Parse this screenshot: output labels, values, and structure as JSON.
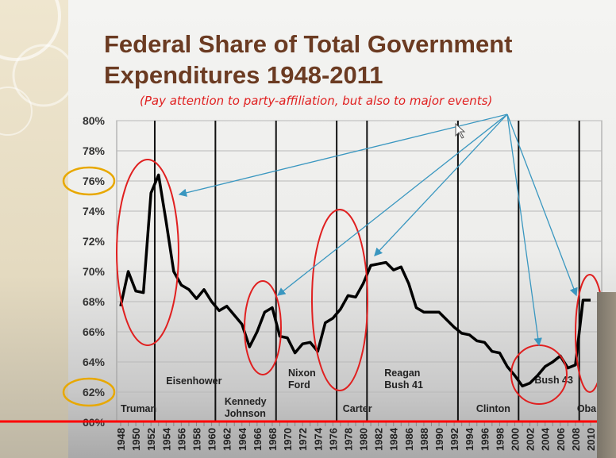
{
  "slide": {
    "title_line1": "Federal Share of Total Government",
    "title_line2": "Expenditures 1948-2011",
    "subtitle": "(Pay attention to party-affiliation, but also to major events)"
  },
  "colors": {
    "line": "#000000",
    "title": "#6b3b22",
    "annotation_ellipse": "#e02020",
    "arrow": "#3a97c0",
    "highlight": "#e8a800",
    "red_rule": "#ff0000"
  },
  "chart_data": {
    "type": "line",
    "title": "Federal Share of Total Government Expenditures 1948-2011",
    "ylim": [
      60,
      80
    ],
    "yticks": [
      "60%",
      "62%",
      "64%",
      "66%",
      "68%",
      "70%",
      "72%",
      "74%",
      "76%",
      "78%",
      "80%"
    ],
    "highlighted_yticks": [
      "76%",
      "62%"
    ],
    "xticks": [
      "1948",
      "1950",
      "1952",
      "1954",
      "1956",
      "1958",
      "1960",
      "1962",
      "1964",
      "1966",
      "1968",
      "1970",
      "1972",
      "1974",
      "1976",
      "1978",
      "1980",
      "1982",
      "1984",
      "1986",
      "1988",
      "1990",
      "1992",
      "1994",
      "1996",
      "1998",
      "2000",
      "2002",
      "2004",
      "2006",
      "2008",
      "2010"
    ],
    "grid": true,
    "x": [
      1948,
      1949,
      1950,
      1951,
      1952,
      1953,
      1954,
      1955,
      1956,
      1957,
      1958,
      1959,
      1960,
      1961,
      1962,
      1963,
      1964,
      1965,
      1966,
      1967,
      1968,
      1969,
      1970,
      1971,
      1972,
      1973,
      1974,
      1975,
      1976,
      1977,
      1978,
      1979,
      1980,
      1981,
      1982,
      1983,
      1984,
      1985,
      1986,
      1987,
      1988,
      1989,
      1990,
      1991,
      1992,
      1993,
      1994,
      1995,
      1996,
      1997,
      1998,
      1999,
      2000,
      2001,
      2002,
      2003,
      2004,
      2005,
      2006,
      2007,
      2008,
      2009,
      2010
    ],
    "values": [
      67.7,
      70.0,
      68.7,
      68.6,
      75.2,
      76.4,
      73.3,
      70.0,
      69.1,
      68.8,
      68.2,
      68.8,
      68.0,
      67.4,
      67.7,
      67.1,
      66.5,
      65.0,
      66.0,
      67.3,
      67.6,
      65.7,
      65.6,
      64.6,
      65.2,
      65.3,
      64.7,
      66.6,
      66.9,
      67.5,
      68.4,
      68.3,
      69.2,
      70.4,
      70.5,
      70.6,
      70.1,
      70.3,
      69.2,
      67.6,
      67.3,
      67.3,
      67.3,
      66.8,
      66.3,
      65.9,
      65.8,
      65.4,
      65.3,
      64.7,
      64.6,
      63.7,
      63.1,
      62.4,
      62.6,
      63.1,
      63.7,
      64.0,
      64.4,
      63.6,
      63.8,
      68.1,
      68.1
    ],
    "administration_boundaries": [
      1952.5,
      1960.5,
      1968.5,
      1976.5,
      1980.5,
      1992.5,
      2000.5,
      2008.5
    ],
    "administration_labels": [
      {
        "text": [
          "Truman"
        ],
        "year": 1948
      },
      {
        "text": [
          "Eisenhower"
        ],
        "year": 1954
      },
      {
        "text": [
          "Kennedy",
          "Johnson"
        ],
        "year": 1961.7
      },
      {
        "text": [
          "Nixon",
          "Ford"
        ],
        "year": 1970.1
      },
      {
        "text": [
          "Carter"
        ],
        "year": 1977.3
      },
      {
        "text": [
          "Reagan",
          "Bush 41"
        ],
        "year": 1982.8
      },
      {
        "text": [
          "Clinton"
        ],
        "year": 1994.9
      },
      {
        "text": [
          "Bush 43"
        ],
        "year": 2002.6
      },
      {
        "text": [
          "Oba"
        ],
        "year": 2008.2
      }
    ],
    "annotation_ellipses": [
      {
        "center": [
          1951.5,
          70.8
        ]
      },
      {
        "center": [
          1967,
          66.3
        ]
      },
      {
        "center": [
          1977,
          66.2
        ]
      },
      {
        "center": [
          2002.8,
          63.4
        ]
      },
      {
        "center": [
          2009.5,
          66
        ]
      }
    ]
  }
}
